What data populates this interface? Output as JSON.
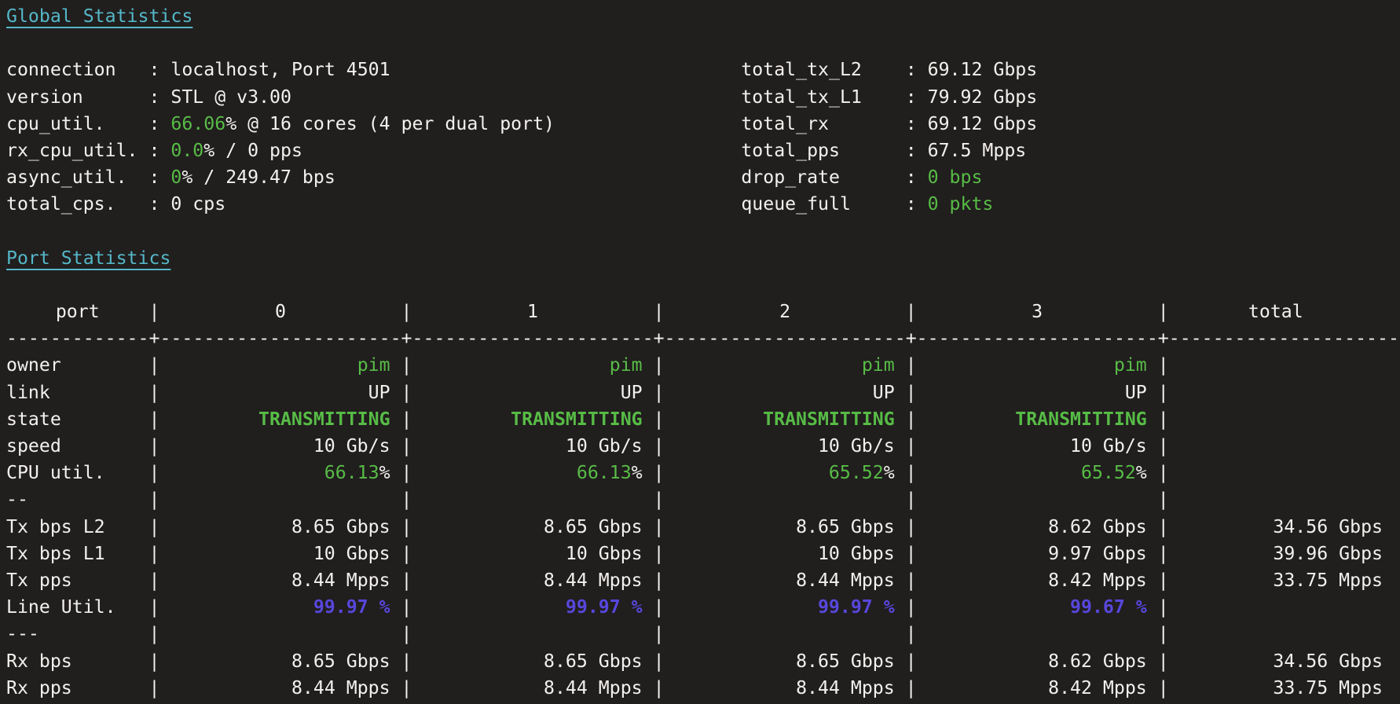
{
  "colors": {
    "bg": "#211e1e",
    "fg": "#f3f1ee",
    "cyan": "#54b7c7",
    "green": "#57bc46",
    "purple": "#5747dc"
  },
  "global_stats": {
    "title": "Global Statistics",
    "left": [
      {
        "label": "connection",
        "segments": [
          {
            "t": "localhost, Port 4501",
            "c": "w"
          }
        ]
      },
      {
        "label": "version",
        "segments": [
          {
            "t": "STL @ v3.00",
            "c": "w"
          }
        ]
      },
      {
        "label": "cpu_util.",
        "segments": [
          {
            "t": "66.06",
            "c": "g"
          },
          {
            "t": "% @ 16 cores (4 per dual port)",
            "c": "w"
          }
        ]
      },
      {
        "label": "rx_cpu_util.",
        "segments": [
          {
            "t": "0.0",
            "c": "g"
          },
          {
            "t": "% / 0 pps",
            "c": "w"
          }
        ]
      },
      {
        "label": "async_util.",
        "segments": [
          {
            "t": "0",
            "c": "g"
          },
          {
            "t": "% / 249.47 bps",
            "c": "w"
          }
        ]
      },
      {
        "label": "total_cps.",
        "segments": [
          {
            "t": "0 cps",
            "c": "w"
          }
        ]
      }
    ],
    "right": [
      {
        "label": "total_tx_L2",
        "segments": [
          {
            "t": "69.12 Gbps",
            "c": "w"
          }
        ]
      },
      {
        "label": "total_tx_L1",
        "segments": [
          {
            "t": "79.92 Gbps",
            "c": "w"
          }
        ]
      },
      {
        "label": "total_rx",
        "segments": [
          {
            "t": "69.12 Gbps",
            "c": "w"
          }
        ]
      },
      {
        "label": "total_pps",
        "segments": [
          {
            "t": "67.5 Mpps",
            "c": "w"
          }
        ]
      },
      {
        "label": "drop_rate",
        "segments": [
          {
            "t": "0 bps",
            "c": "g"
          }
        ]
      },
      {
        "label": "queue_full",
        "segments": [
          {
            "t": "0 pkts",
            "c": "g"
          }
        ]
      }
    ]
  },
  "port_stats": {
    "title": "Port Statistics",
    "columns": [
      "port",
      "0",
      "1",
      "2",
      "3",
      "total"
    ],
    "rows": [
      {
        "label": "owner",
        "cells": [
          [
            {
              "t": "pim",
              "c": "g"
            }
          ],
          [
            {
              "t": "pim",
              "c": "g"
            }
          ],
          [
            {
              "t": "pim",
              "c": "g"
            }
          ],
          [
            {
              "t": "pim",
              "c": "g"
            }
          ]
        ],
        "total": []
      },
      {
        "label": "link",
        "cells": [
          [
            {
              "t": "UP",
              "c": "w"
            }
          ],
          [
            {
              "t": "UP",
              "c": "w"
            }
          ],
          [
            {
              "t": "UP",
              "c": "w"
            }
          ],
          [
            {
              "t": "UP",
              "c": "w"
            }
          ]
        ],
        "total": []
      },
      {
        "label": "state",
        "cells": [
          [
            {
              "t": "TRANSMITTING",
              "c": "g",
              "b": true
            }
          ],
          [
            {
              "t": "TRANSMITTING",
              "c": "g",
              "b": true
            }
          ],
          [
            {
              "t": "TRANSMITTING",
              "c": "g",
              "b": true
            }
          ],
          [
            {
              "t": "TRANSMITTING",
              "c": "g",
              "b": true
            }
          ]
        ],
        "total": []
      },
      {
        "label": "speed",
        "cells": [
          [
            {
              "t": "10 Gb/s",
              "c": "w"
            }
          ],
          [
            {
              "t": "10 Gb/s",
              "c": "w"
            }
          ],
          [
            {
              "t": "10 Gb/s",
              "c": "w"
            }
          ],
          [
            {
              "t": "10 Gb/s",
              "c": "w"
            }
          ]
        ],
        "total": []
      },
      {
        "label": "CPU util.",
        "cells": [
          [
            {
              "t": "66.13",
              "c": "g"
            },
            {
              "t": "%",
              "c": "w"
            }
          ],
          [
            {
              "t": "66.13",
              "c": "g"
            },
            {
              "t": "%",
              "c": "w"
            }
          ],
          [
            {
              "t": "65.52",
              "c": "g"
            },
            {
              "t": "%",
              "c": "w"
            }
          ],
          [
            {
              "t": "65.52",
              "c": "g"
            },
            {
              "t": "%",
              "c": "w"
            }
          ]
        ],
        "total": []
      },
      {
        "label": "--",
        "sep_label": true,
        "cells": [
          [],
          [],
          [],
          []
        ],
        "total": []
      },
      {
        "label": "Tx bps L2",
        "cells": [
          [
            {
              "t": "8.65 Gbps",
              "c": "w"
            }
          ],
          [
            {
              "t": "8.65 Gbps",
              "c": "w"
            }
          ],
          [
            {
              "t": "8.65 Gbps",
              "c": "w"
            }
          ],
          [
            {
              "t": "8.62 Gbps",
              "c": "w"
            }
          ]
        ],
        "total": [
          {
            "t": "34.56 Gbps",
            "c": "w"
          }
        ]
      },
      {
        "label": "Tx bps L1",
        "cells": [
          [
            {
              "t": "10 Gbps",
              "c": "w"
            }
          ],
          [
            {
              "t": "10 Gbps",
              "c": "w"
            }
          ],
          [
            {
              "t": "10 Gbps",
              "c": "w"
            }
          ],
          [
            {
              "t": "9.97 Gbps",
              "c": "w"
            }
          ]
        ],
        "total": [
          {
            "t": "39.96 Gbps",
            "c": "w"
          }
        ]
      },
      {
        "label": "Tx pps",
        "cells": [
          [
            {
              "t": "8.44 Mpps",
              "c": "w"
            }
          ],
          [
            {
              "t": "8.44 Mpps",
              "c": "w"
            }
          ],
          [
            {
              "t": "8.44 Mpps",
              "c": "w"
            }
          ],
          [
            {
              "t": "8.42 Mpps",
              "c": "w"
            }
          ]
        ],
        "total": [
          {
            "t": "33.75 Mpps",
            "c": "w"
          }
        ]
      },
      {
        "label": "Line Util.",
        "cells": [
          [
            {
              "t": "99.97 %",
              "c": "p",
              "b": true
            }
          ],
          [
            {
              "t": "99.97 %",
              "c": "p",
              "b": true
            }
          ],
          [
            {
              "t": "99.97 %",
              "c": "p",
              "b": true
            }
          ],
          [
            {
              "t": "99.67 %",
              "c": "p",
              "b": true
            }
          ]
        ],
        "total": []
      },
      {
        "label": "---",
        "sep_label": true,
        "cells": [
          [],
          [],
          [],
          []
        ],
        "total": []
      },
      {
        "label": "Rx bps",
        "cells": [
          [
            {
              "t": "8.65 Gbps",
              "c": "w"
            }
          ],
          [
            {
              "t": "8.65 Gbps",
              "c": "w"
            }
          ],
          [
            {
              "t": "8.65 Gbps",
              "c": "w"
            }
          ],
          [
            {
              "t": "8.62 Gbps",
              "c": "w"
            }
          ]
        ],
        "total": [
          {
            "t": "34.56 Gbps",
            "c": "w"
          }
        ]
      },
      {
        "label": "Rx pps",
        "cells": [
          [
            {
              "t": "8.44 Mpps",
              "c": "w"
            }
          ],
          [
            {
              "t": "8.44 Mpps",
              "c": "w"
            }
          ],
          [
            {
              "t": "8.44 Mpps",
              "c": "w"
            }
          ],
          [
            {
              "t": "8.42 Mpps",
              "c": "w"
            }
          ]
        ],
        "total": [
          {
            "t": "33.75 Mpps",
            "c": "w"
          }
        ]
      }
    ]
  }
}
